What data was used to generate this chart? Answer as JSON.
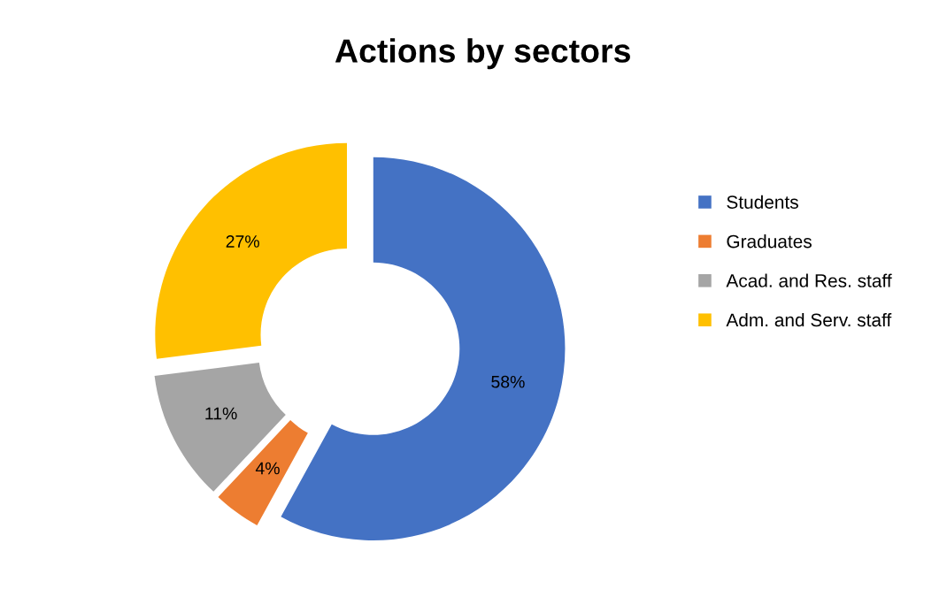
{
  "chart_data": {
    "type": "donut",
    "title": "Actions by sectors",
    "categories": [
      "Students",
      "Graduates",
      "Acad. and Res. staff",
      "Adm. and Serv. staff"
    ],
    "values": [
      58,
      4,
      11,
      27
    ],
    "value_labels": [
      "58%",
      "4%",
      "11%",
      "27%"
    ],
    "colors": [
      "#4472c4",
      "#ed7d31",
      "#a5a5a5",
      "#ffc000"
    ],
    "legend": "right"
  }
}
